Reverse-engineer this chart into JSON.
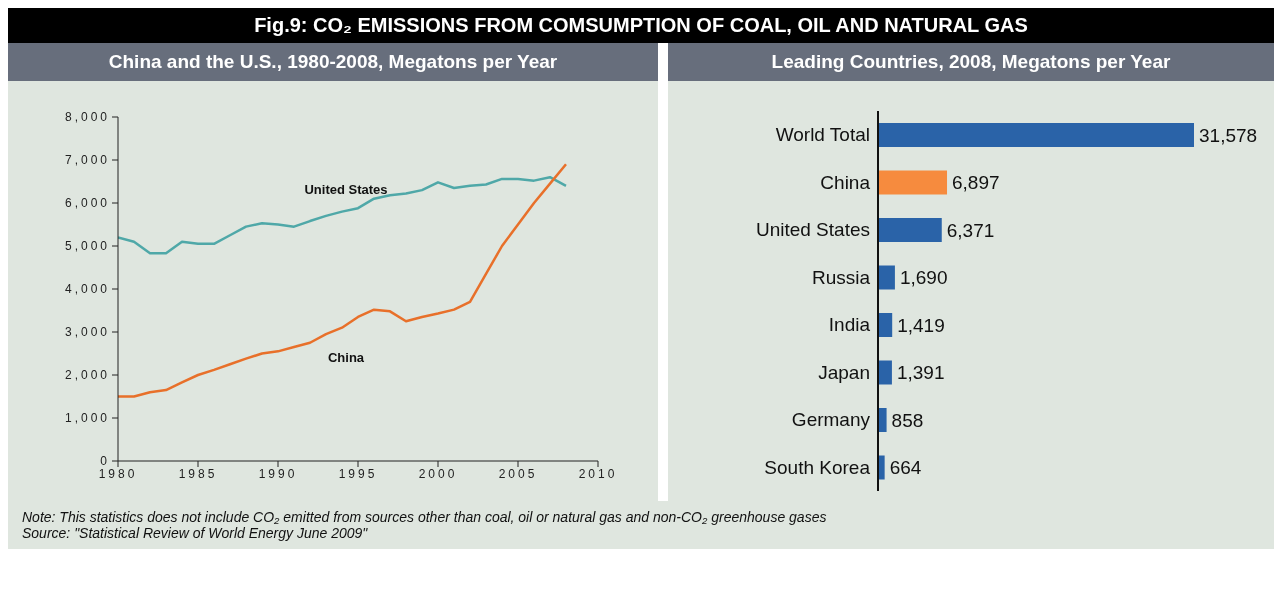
{
  "chart_data": [
    {
      "type": "line",
      "title": "Fig.9: CO₂ EMISSIONS FROM COMSUMPTION OF COAL, OIL AND NATURAL GAS",
      "subtitle": "China and the U.S., 1980-2008, Megatons per Year",
      "x": [
        1980,
        1981,
        1982,
        1983,
        1984,
        1985,
        1986,
        1987,
        1988,
        1989,
        1990,
        1991,
        1992,
        1993,
        1994,
        1995,
        1996,
        1997,
        1998,
        1999,
        2000,
        2001,
        2002,
        2003,
        2004,
        2005,
        2006,
        2007,
        2008
      ],
      "series": [
        {
          "name": "United States",
          "color": "#4fa8a8",
          "values": [
            5200,
            5100,
            4830,
            4830,
            5100,
            5050,
            5050,
            5250,
            5450,
            5530,
            5500,
            5450,
            5580,
            5700,
            5800,
            5880,
            6100,
            6180,
            6220,
            6300,
            6480,
            6350,
            6400,
            6430,
            6560,
            6560,
            6520,
            6600,
            6400
          ]
        },
        {
          "name": "China",
          "color": "#e8702a",
          "values": [
            1500,
            1500,
            1600,
            1650,
            1830,
            2000,
            2120,
            2250,
            2380,
            2500,
            2550,
            2650,
            2750,
            2950,
            3100,
            3350,
            3520,
            3480,
            3250,
            3350,
            3430,
            3520,
            3700,
            4350,
            5000,
            5500,
            6000,
            6450,
            6900
          ]
        }
      ],
      "xlim": [
        1980,
        2010
      ],
      "xticks": [
        1980,
        1985,
        1990,
        1995,
        2000,
        2005,
        2010
      ],
      "ylim": [
        0,
        8000
      ],
      "yticks": [
        {
          "value": 0,
          "label": "0"
        },
        {
          "value": 1000,
          "label": "1,000"
        },
        {
          "value": 2000,
          "label": "2,000"
        },
        {
          "value": 3000,
          "label": "3,000"
        },
        {
          "value": 4000,
          "label": "4,000"
        },
        {
          "value": 5000,
          "label": "5,000"
        },
        {
          "value": 6000,
          "label": "6,000"
        },
        {
          "value": 7000,
          "label": "7,000"
        },
        {
          "value": 8000,
          "label": "8,000"
        }
      ],
      "marker": "none",
      "line_style": "solid",
      "annotations": [
        "Note: This statistics does not include CO₂ emitted from sources other than coal, oil or natural gas and non-CO₂ greenhouse gases",
        "Source: \"Statistical Review of World Energy June 2009\""
      ]
    },
    {
      "type": "bar",
      "orientation": "horizontal",
      "subtitle": "Leading Countries, 2008, Megatons per Year",
      "categories": [
        "World Total",
        "China",
        "United States",
        "Russia",
        "India",
        "Japan",
        "Germany",
        "South Korea"
      ],
      "values": [
        31578,
        6897,
        6371,
        1690,
        1419,
        1391,
        858,
        664
      ],
      "colors": [
        "#2a63a8",
        "#f68b3e",
        "#2a63a8",
        "#2a63a8",
        "#2a63a8",
        "#2a63a8",
        "#2a63a8",
        "#2a63a8"
      ],
      "value_labels": [
        "31,578",
        "6,897",
        "6,371",
        "1,690",
        "1,419",
        "1,391",
        "858",
        "664"
      ]
    }
  ]
}
